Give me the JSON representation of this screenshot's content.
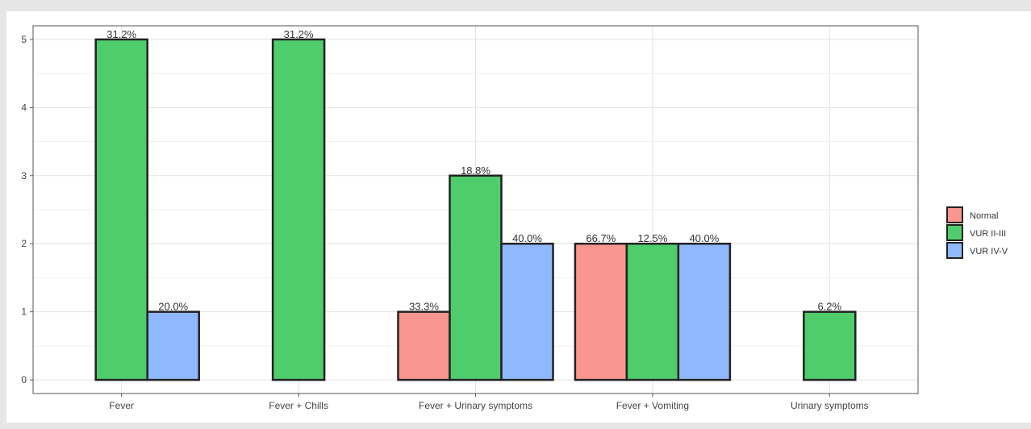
{
  "chart_data": {
    "type": "bar",
    "categories": [
      "Fever",
      "Fever + Chills",
      "Fever + Urinary symptoms",
      "Fever + Vomiting",
      "Urinary symptoms"
    ],
    "series": [
      {
        "name": "Normal",
        "color": "#f8968f",
        "values": [
          null,
          null,
          1,
          2,
          null
        ],
        "labels": [
          "",
          "",
          "33.3%",
          "66.7%",
          ""
        ]
      },
      {
        "name": "VUR II-III",
        "color": "#4fcc6b",
        "values": [
          5,
          5,
          3,
          2,
          1
        ],
        "labels": [
          "31.2%",
          "31.2%",
          "18.8%",
          "12.5%",
          "6.2%"
        ]
      },
      {
        "name": "VUR IV-V",
        "color": "#8fb8ff",
        "values": [
          1,
          null,
          2,
          2,
          null
        ],
        "labels": [
          "20.0%",
          "",
          "40.0%",
          "40.0%",
          ""
        ]
      }
    ],
    "yticks": [
      0,
      1,
      2,
      3,
      4,
      5
    ],
    "ylim": [
      -0.2,
      5.2
    ],
    "title": "",
    "xlabel": "",
    "ylabel": "",
    "grid": true,
    "legend_position": "right"
  }
}
